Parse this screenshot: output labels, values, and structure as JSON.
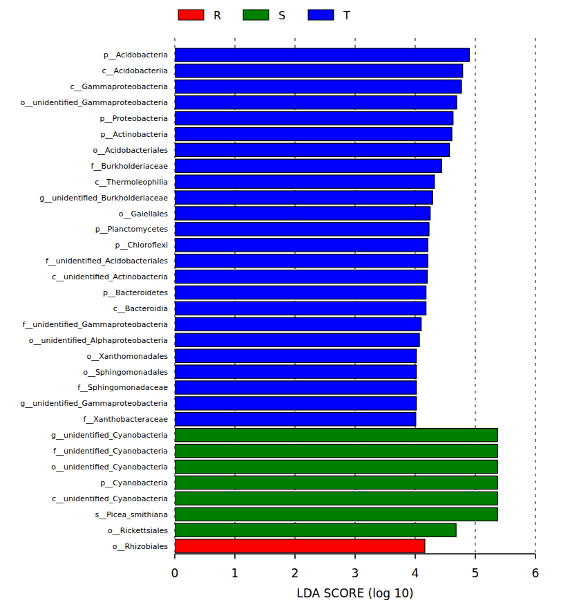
{
  "chart_data": {
    "type": "bar",
    "orientation": "horizontal",
    "grid": true,
    "legend": "top",
    "x_label": "LDA SCORE (log 10)",
    "xlim": [
      0,
      6
    ],
    "xticks": [
      0,
      1,
      2,
      3,
      4,
      5,
      6
    ],
    "categories": [
      "p__Acidobacteria",
      "c__Acidobacteriia",
      "c__Gammaproteobacteria",
      "o__unidentified_Gammaproteobacteria",
      "p__Proteobacteria",
      "p__Actinobacteria",
      "o__Acidobacteriales",
      "f__Burkholderiaceae",
      "c__Thermoleophilia",
      "g__unidentified_Burkholderiaceae",
      "o__Gaiellales",
      "p__Planctomycetes",
      "p__Chloroflexi",
      "f__unidentified_Acidobacteriales",
      "c__unidentified_Actinobacteria",
      "p__Bacteroidetes",
      "c__Bacteroidia",
      "f__unidentified_Gammaproteobacteria",
      "o__unidentified_Alphaproteobacteria",
      "o__Xanthomonadales",
      "o__Sphingomonadales",
      "f__Sphingomonadaceae",
      "g__unidentified_Gammaproteobacteria",
      "f__Xanthobacteraceae",
      "g__unidentified_Cyanobacteria",
      "f__unidentified_Cyanobacteria",
      "o__unidentified_Cyanobacteria",
      "p__Cyanobacteria",
      "c__unidentified_Cyanobacteria",
      "s__Picea_smithiana",
      "o__Rickettsiales",
      "o__Rhizobiales"
    ],
    "series": [
      {
        "name": "R",
        "color": "#ff0000",
        "values": [
          null,
          null,
          null,
          null,
          null,
          null,
          null,
          null,
          null,
          null,
          null,
          null,
          null,
          null,
          null,
          null,
          null,
          null,
          null,
          null,
          null,
          null,
          null,
          null,
          null,
          null,
          null,
          null,
          null,
          null,
          null,
          4.16
        ]
      },
      {
        "name": "S",
        "color": "#008000",
        "values": [
          null,
          null,
          null,
          null,
          null,
          null,
          null,
          null,
          null,
          null,
          null,
          null,
          null,
          null,
          null,
          null,
          null,
          null,
          null,
          null,
          null,
          null,
          null,
          null,
          5.37,
          5.37,
          5.37,
          5.37,
          5.37,
          5.37,
          4.68,
          null
        ]
      },
      {
        "name": "T",
        "color": "#0000ff",
        "values": [
          4.9,
          4.79,
          4.77,
          4.69,
          4.63,
          4.61,
          4.57,
          4.44,
          4.32,
          4.29,
          4.25,
          4.23,
          4.21,
          4.21,
          4.2,
          4.18,
          4.18,
          4.1,
          4.07,
          4.02,
          4.02,
          4.02,
          4.02,
          4.01,
          null,
          null,
          null,
          null,
          null,
          null,
          null,
          null
        ]
      }
    ]
  }
}
